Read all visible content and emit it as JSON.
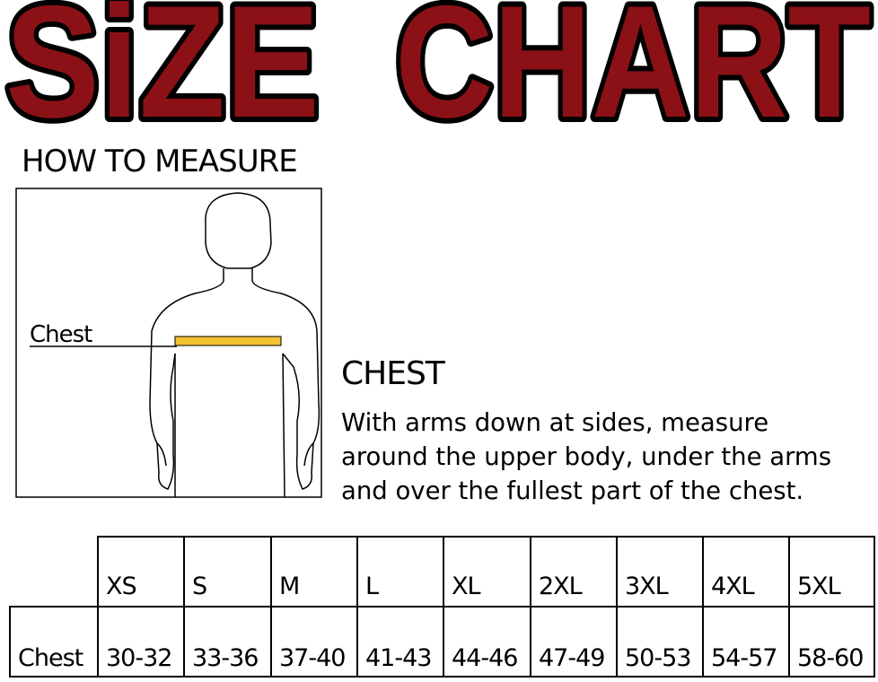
{
  "title": "SiZE CHART",
  "title_colors": {
    "fill": "#8b1116",
    "outline": "#000000"
  },
  "how_to_measure": "HOW TO MEASURE",
  "figure": {
    "label": "Chest",
    "tape_color": "#f2c230"
  },
  "chest_heading": "CHEST",
  "description_lines": [
    "With arms down at sides, measure",
    "around the upper body, under the arms",
    "and over the fullest part of the chest."
  ],
  "table": {
    "sizes": [
      "XS",
      "S",
      "M",
      "L",
      "XL",
      "2XL",
      "3XL",
      "4XL",
      "5XL"
    ],
    "row_label": "Chest",
    "values": [
      "30-32",
      "33-36",
      "37-40",
      "41-43",
      "44-46",
      "47-49",
      "50-53",
      "54-57",
      "58-60"
    ]
  }
}
